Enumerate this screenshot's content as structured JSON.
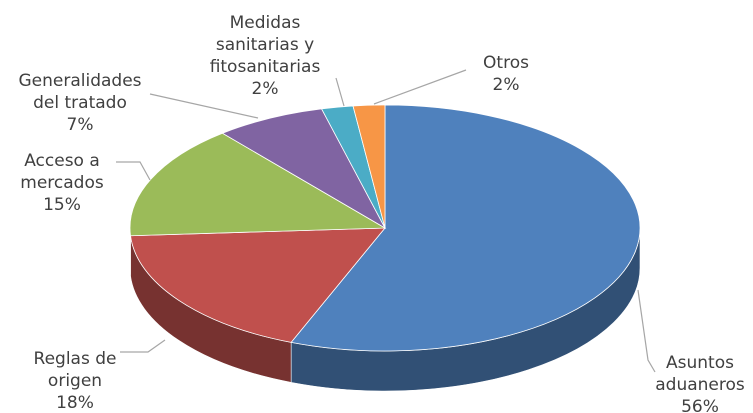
{
  "chart_data": {
    "type": "pie",
    "categories": [
      "Asuntos\naduaneros",
      "Reglas de\norigen",
      "Acceso a\nmercados",
      "Generalidades\ndel tratado",
      "Medidas\nsanitarias y\nfitosanitarias",
      "Otros"
    ],
    "values": [
      56,
      18,
      15,
      7,
      2,
      2
    ],
    "value_labels": [
      "56%",
      "18%",
      "15%",
      "7%",
      "2%",
      "2%"
    ],
    "colors": [
      "#4f81bd",
      "#c0504d",
      "#9bbb59",
      "#8064a2",
      "#4bacc6",
      "#f79646"
    ]
  }
}
